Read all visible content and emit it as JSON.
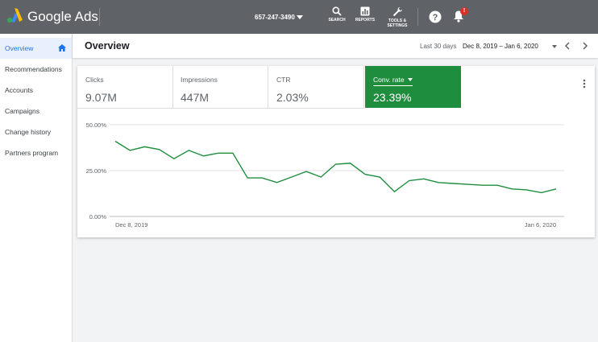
{
  "app": {
    "brand": "Google Ads",
    "account": "657-247-3490"
  },
  "toolbar": {
    "search_label": "SEARCH",
    "reports_label": "REPORTS",
    "tools_line1": "TOOLS &",
    "tools_line2": "SETTINGS",
    "badge": "!"
  },
  "sidebar": {
    "items": [
      {
        "label": "Overview",
        "active": true
      },
      {
        "label": "Recommendations"
      },
      {
        "label": "Accounts"
      },
      {
        "label": "Campaigns"
      },
      {
        "label": "Change history"
      },
      {
        "label": "Partners program"
      }
    ]
  },
  "header": {
    "title": "Overview",
    "range_label": "Last 30 days",
    "date_range": "Dec 8, 2019 – Jan 6, 2020"
  },
  "metrics": [
    {
      "label": "Clicks",
      "value": "9.07M"
    },
    {
      "label": "Impressions",
      "value": "447M"
    },
    {
      "label": "CTR",
      "value": "2.03%"
    },
    {
      "label": "Conv. rate",
      "value": "23.39%",
      "selected": true
    }
  ],
  "colors": {
    "accent_green": "#1e8e3e",
    "topbar": "#5f6368",
    "active_blue": "#1a73e8"
  },
  "chart_data": {
    "type": "line",
    "yticks": [
      "50.00%",
      "25.00%",
      "0.00%"
    ],
    "ylim": [
      0,
      50
    ],
    "xstart_label": "Dec 8, 2019",
    "xend_label": "Jan 6, 2020",
    "series": [
      {
        "values": [
          41,
          36,
          38,
          36.5,
          31.5,
          36,
          33,
          34.5,
          34.5,
          21,
          21,
          18.5,
          21.5,
          24.5,
          21.5,
          28.5,
          29,
          23,
          21.5,
          13.5,
          19.5,
          20.5,
          18.5,
          18,
          17.5,
          17,
          17,
          15,
          14.5,
          13,
          15
        ]
      }
    ],
    "grid": true
  }
}
